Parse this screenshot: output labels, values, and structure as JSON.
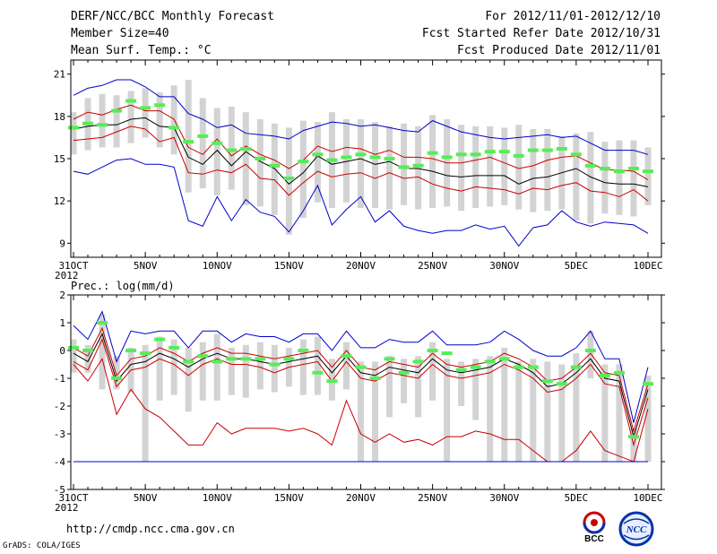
{
  "header": {
    "title": "DERF/NCC/BCC Monthly Forecast",
    "member_size": "Member Size=40",
    "variable": "Mean Surf. Temp.: °C",
    "period": "For 2012/11/01-2012/12/10",
    "started": "Fcst Started Refer Date 2012/10/31",
    "produced": "Fcst Produced Date 2012/11/01"
  },
  "footer": {
    "url": "http://cmdp.ncc.cma.gov.cn",
    "credit": "GrADS: COLA/IGES",
    "logo_left_text": "BCC",
    "logo_right_text": "NCC"
  },
  "colors": {
    "box": "#d3d3d3",
    "mean": "#000000",
    "spread": "#cc0000",
    "envelope": "#0000cc",
    "observed": "#55ee55",
    "frame": "#000000"
  },
  "chart_data": [
    {
      "type": "line",
      "title": "Mean Surf. Temp.: °C",
      "x_tick_labels": [
        "31OCT",
        "5NOV",
        "10NOV",
        "15NOV",
        "20NOV",
        "25NOV",
        "30NOV",
        "5DEC",
        "10DEC"
      ],
      "x_year_label": "2012",
      "x_dates": [
        "10/31",
        "11/01",
        "11/02",
        "11/03",
        "11/04",
        "11/05",
        "11/06",
        "11/07",
        "11/08",
        "11/09",
        "11/10",
        "11/11",
        "11/12",
        "11/13",
        "11/14",
        "11/15",
        "11/16",
        "11/17",
        "11/18",
        "11/19",
        "11/20",
        "11/21",
        "11/22",
        "11/23",
        "11/24",
        "11/25",
        "11/26",
        "11/27",
        "11/28",
        "11/29",
        "11/30",
        "12/01",
        "12/02",
        "12/03",
        "12/04",
        "12/05",
        "12/06",
        "12/07",
        "12/08",
        "12/09",
        "12/10"
      ],
      "ylim": [
        8,
        22
      ],
      "y_ticks": [
        9,
        12,
        15,
        18,
        21
      ],
      "series": [
        {
          "name": "box_top",
          "values": [
            18.3,
            19.3,
            19.6,
            19.5,
            19.8,
            20.0,
            19.7,
            20.2,
            20.6,
            19.3,
            18.6,
            18.7,
            18.3,
            17.8,
            17.5,
            17.2,
            17.7,
            17.6,
            18.3,
            17.8,
            17.8,
            17.6,
            17.3,
            17.5,
            17.3,
            18.1,
            17.8,
            17.4,
            17.3,
            17.3,
            17.2,
            17.4,
            17.1,
            17.1,
            16.6,
            16.8,
            16.9,
            16.2,
            16.3,
            16.3,
            15.8
          ]
        },
        {
          "name": "box_bottom",
          "values": [
            15.3,
            15.6,
            15.8,
            15.8,
            16.1,
            16.5,
            15.8,
            15.3,
            12.6,
            12.9,
            12.4,
            12.8,
            11.7,
            11.6,
            11.0,
            9.6,
            10.8,
            11.9,
            11.5,
            11.9,
            11.5,
            11.5,
            11.4,
            11.7,
            11.4,
            11.5,
            11.6,
            11.3,
            11.5,
            11.6,
            11.7,
            11.4,
            11.2,
            11.3,
            11.4,
            10.6,
            10.4,
            11.1,
            11.0,
            10.9,
            11.7
          ]
        },
        {
          "name": "ensemble_mean",
          "values": [
            17.1,
            17.3,
            17.4,
            17.4,
            17.8,
            17.9,
            17.3,
            17.2,
            15.1,
            14.6,
            15.6,
            14.5,
            15.5,
            14.8,
            14.3,
            13.2,
            14.0,
            15.2,
            14.6,
            14.8,
            15.0,
            14.6,
            14.8,
            14.3,
            14.3,
            14.1,
            13.8,
            13.7,
            13.8,
            13.8,
            13.8,
            13.2,
            13.6,
            13.7,
            14.0,
            14.3,
            13.7,
            13.3,
            13.2,
            13.2,
            13.0
          ]
        },
        {
          "name": "upper_spread",
          "values": [
            17.8,
            18.3,
            18.1,
            18.5,
            18.8,
            18.4,
            18.4,
            17.8,
            15.8,
            15.3,
            16.4,
            15.2,
            15.9,
            15.3,
            14.9,
            14.3,
            14.9,
            15.9,
            15.5,
            15.8,
            15.7,
            15.3,
            15.6,
            15.1,
            15.1,
            15.0,
            14.7,
            14.7,
            14.9,
            15.1,
            14.7,
            14.3,
            14.5,
            14.9,
            15.1,
            15.2,
            14.7,
            14.2,
            14.2,
            14.1,
            13.5
          ]
        },
        {
          "name": "lower_spread",
          "values": [
            16.3,
            16.4,
            16.5,
            16.9,
            17.3,
            17.1,
            16.2,
            16.5,
            14.0,
            13.9,
            14.2,
            14.0,
            14.6,
            13.6,
            13.5,
            12.4,
            13.3,
            14.1,
            13.7,
            13.9,
            14.0,
            13.6,
            14.0,
            13.6,
            13.7,
            13.2,
            12.9,
            12.7,
            13.0,
            12.9,
            12.8,
            12.5,
            12.9,
            12.8,
            13.1,
            13.3,
            12.7,
            12.6,
            12.3,
            12.8,
            12.0
          ]
        },
        {
          "name": "upper_envelope",
          "values": [
            19.5,
            20.0,
            20.2,
            20.6,
            20.6,
            20.1,
            19.4,
            19.4,
            18.2,
            17.8,
            17.2,
            17.4,
            16.8,
            16.7,
            16.6,
            16.4,
            17.0,
            17.3,
            17.6,
            17.5,
            17.3,
            17.4,
            17.2,
            17.0,
            16.9,
            17.7,
            17.3,
            16.9,
            16.7,
            16.5,
            16.4,
            16.5,
            16.6,
            16.7,
            16.5,
            16.6,
            16.1,
            15.6,
            15.6,
            15.6,
            15.3
          ]
        },
        {
          "name": "lower_envelope",
          "values": [
            14.1,
            13.9,
            14.4,
            14.9,
            15.0,
            14.6,
            14.6,
            14.4,
            10.6,
            10.2,
            12.3,
            10.6,
            12.1,
            11.2,
            10.9,
            9.8,
            11.3,
            13.1,
            10.3,
            11.4,
            12.3,
            10.5,
            11.3,
            10.2,
            9.9,
            9.7,
            9.9,
            9.9,
            10.3,
            10.0,
            10.2,
            8.8,
            10.1,
            10.3,
            11.3,
            10.5,
            10.2,
            10.5,
            10.4,
            10.3,
            9.7
          ]
        },
        {
          "name": "observed",
          "values": [
            17.2,
            17.5,
            17.4,
            18.4,
            19.1,
            18.6,
            18.8,
            17.2,
            16.2,
            16.6,
            16.1,
            15.6,
            15.7,
            15.0,
            14.5,
            13.6,
            14.8,
            15.3,
            14.9,
            15.1,
            15.3,
            15.1,
            15.0,
            14.4,
            14.5,
            15.4,
            15.1,
            15.3,
            15.3,
            15.5,
            15.5,
            15.2,
            15.6,
            15.6,
            15.7,
            15.3,
            14.5,
            14.3,
            14.1,
            14.3,
            14.1
          ]
        }
      ]
    },
    {
      "type": "line",
      "title": "Prec.: log(mm/d)",
      "x_tick_labels": [
        "31OCT",
        "5NOV",
        "10NOV",
        "15NOV",
        "20NOV",
        "25NOV",
        "30NOV",
        "5DEC",
        "10DEC"
      ],
      "x_year_label": "2012",
      "x_dates": [
        "10/31",
        "11/01",
        "11/02",
        "11/03",
        "11/04",
        "11/05",
        "11/06",
        "11/07",
        "11/08",
        "11/09",
        "11/10",
        "11/11",
        "11/12",
        "11/13",
        "11/14",
        "11/15",
        "11/16",
        "11/17",
        "11/18",
        "11/19",
        "11/20",
        "11/21",
        "11/22",
        "11/23",
        "11/24",
        "11/25",
        "11/26",
        "11/27",
        "11/28",
        "11/29",
        "11/30",
        "12/01",
        "12/02",
        "12/03",
        "12/04",
        "12/05",
        "12/06",
        "12/07",
        "12/08",
        "12/09",
        "12/10"
      ],
      "ylim": [
        -5,
        2
      ],
      "y_ticks": [
        -5,
        -4,
        -3,
        -2,
        -1,
        0,
        1,
        2
      ],
      "series": [
        {
          "name": "box_top",
          "values": [
            0.4,
            0.2,
            1.3,
            -0.2,
            0.1,
            0.2,
            0.5,
            0.4,
            0.1,
            0.3,
            0.6,
            0.1,
            0.2,
            0.3,
            0.2,
            0.1,
            0.4,
            0.5,
            -0.3,
            0.3,
            -0.4,
            -0.4,
            -0.2,
            -0.3,
            -0.2,
            0.3,
            -0.3,
            -0.4,
            -0.3,
            -0.2,
            0.1,
            -0.4,
            -0.3,
            -0.4,
            -0.5,
            -0.1,
            0.7,
            -0.5,
            -0.5,
            -2.8,
            -0.9
          ]
        },
        {
          "name": "box_bottom",
          "values": [
            -0.8,
            -0.8,
            -1.4,
            -1.4,
            -1.5,
            -4.0,
            -1.8,
            -1.6,
            -2.2,
            -1.8,
            -1.8,
            -1.6,
            -1.7,
            -1.4,
            -1.5,
            -1.3,
            -1.6,
            -1.6,
            -1.8,
            -1.4,
            -4.0,
            -4.0,
            -2.4,
            -1.9,
            -2.4,
            -1.8,
            -4.0,
            -2.0,
            -2.5,
            -4.0,
            -4.0,
            -4.0,
            -4.0,
            -4.0,
            -4.0,
            -4.0,
            -1.0,
            -4.0,
            -4.0,
            -4.0,
            -4.0
          ]
        },
        {
          "name": "ensemble_mean",
          "values": [
            -0.1,
            -0.4,
            0.6,
            -1.1,
            -0.5,
            -0.4,
            -0.1,
            -0.3,
            -0.6,
            -0.3,
            -0.1,
            -0.3,
            -0.3,
            -0.4,
            -0.5,
            -0.4,
            -0.3,
            -0.2,
            -0.8,
            -0.2,
            -0.8,
            -0.9,
            -0.6,
            -0.7,
            -0.8,
            -0.3,
            -0.7,
            -0.8,
            -0.7,
            -0.6,
            -0.3,
            -0.5,
            -0.8,
            -1.3,
            -1.2,
            -0.8,
            -0.3,
            -1.0,
            -1.1,
            -3.1,
            -1.4
          ]
        },
        {
          "name": "upper_spread",
          "values": [
            0.1,
            -0.2,
            0.8,
            -0.9,
            -0.3,
            -0.2,
            0.1,
            -0.1,
            -0.4,
            -0.1,
            0.1,
            -0.1,
            -0.1,
            -0.2,
            -0.3,
            -0.2,
            -0.1,
            0.0,
            -0.6,
            0.0,
            -0.6,
            -0.7,
            -0.4,
            -0.5,
            -0.6,
            -0.1,
            -0.5,
            -0.6,
            -0.5,
            -0.4,
            -0.1,
            -0.3,
            -0.6,
            -1.1,
            -1.0,
            -0.6,
            -0.1,
            -0.8,
            -0.9,
            -2.9,
            -1.2
          ]
        },
        {
          "name": "lower_spread",
          "values": [
            -0.4,
            -0.7,
            0.4,
            -1.3,
            -0.7,
            -0.6,
            -0.3,
            -0.5,
            -0.9,
            -0.5,
            -0.3,
            -0.5,
            -0.5,
            -0.6,
            -0.8,
            -0.6,
            -0.5,
            -0.4,
            -1.1,
            -0.4,
            -1.0,
            -1.1,
            -0.8,
            -0.9,
            -1.0,
            -0.5,
            -0.9,
            -1.0,
            -0.9,
            -0.8,
            -0.5,
            -0.7,
            -1.0,
            -1.5,
            -1.4,
            -1.0,
            -0.5,
            -1.2,
            -1.3,
            -3.4,
            -1.7
          ]
        },
        {
          "name": "upper_envelope",
          "values": [
            0.9,
            0.4,
            1.4,
            -0.4,
            0.7,
            0.6,
            0.7,
            0.7,
            0.1,
            0.7,
            0.7,
            0.3,
            0.6,
            0.5,
            0.5,
            0.3,
            0.6,
            0.6,
            0.0,
            0.7,
            0.1,
            0.1,
            0.4,
            0.3,
            0.3,
            0.7,
            0.2,
            0.2,
            0.2,
            0.3,
            0.7,
            0.4,
            0.0,
            -0.2,
            -0.2,
            0.1,
            0.7,
            -0.3,
            -0.3,
            -2.6,
            -0.6
          ]
        },
        {
          "name": "lower_envelope",
          "values": [
            -0.5,
            -1.1,
            -0.3,
            -2.3,
            -1.4,
            -2.1,
            -2.4,
            -2.9,
            -3.4,
            -3.4,
            -2.6,
            -3.0,
            -2.8,
            -2.8,
            -2.8,
            -2.9,
            -2.8,
            -3.0,
            -3.4,
            -1.8,
            -3.0,
            -3.3,
            -3.0,
            -3.3,
            -3.2,
            -3.4,
            -3.1,
            -3.1,
            -2.9,
            -3.0,
            -3.2,
            -3.2,
            -3.6,
            -4.0,
            -4.0,
            -3.6,
            -2.9,
            -3.6,
            -3.8,
            -4.0,
            -2.1
          ]
        },
        {
          "name": "lower_bound",
          "values": [
            -4.0,
            -4.0,
            -4.0,
            -4.0,
            -4.0,
            -4.0,
            -4.0,
            -4.0,
            -4.0,
            -4.0,
            -4.0,
            -4.0,
            -4.0,
            -4.0,
            -4.0,
            -4.0,
            -4.0,
            -4.0,
            -4.0,
            -4.0,
            -4.0,
            -4.0,
            -4.0,
            -4.0,
            -4.0,
            -4.0,
            -4.0,
            -4.0,
            -4.0,
            -4.0,
            -4.0,
            -4.0,
            -4.0,
            -4.0,
            -4.0,
            -4.0,
            -4.0,
            -4.0,
            -4.0,
            -4.0,
            -4.0
          ]
        },
        {
          "name": "observed",
          "values": [
            0.1,
            0.0,
            1.0,
            -1.0,
            0.0,
            -0.1,
            0.4,
            0.1,
            -0.4,
            -0.2,
            -0.4,
            -0.3,
            -0.3,
            -0.3,
            -0.5,
            -0.3,
            0.0,
            -0.8,
            -1.1,
            -0.2,
            -0.6,
            -1.0,
            -0.3,
            -0.8,
            -0.4,
            0.0,
            -0.1,
            -0.7,
            -0.6,
            -0.4,
            -0.3,
            -0.6,
            -0.6,
            -1.1,
            -1.2,
            -0.6,
            0.0,
            -0.9,
            -0.8,
            -3.1,
            -1.2
          ]
        }
      ]
    }
  ]
}
